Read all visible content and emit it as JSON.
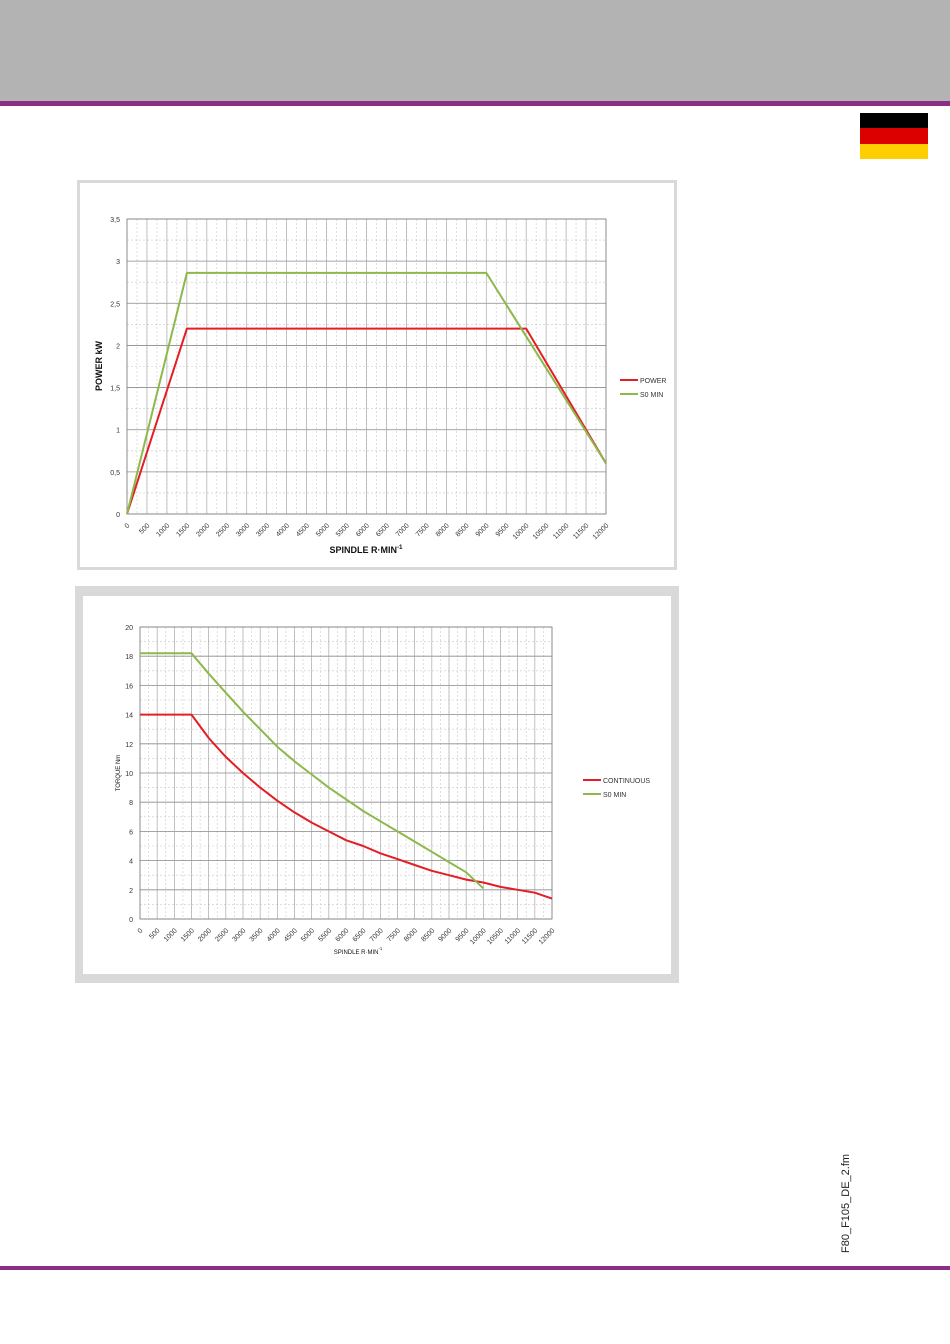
{
  "page": {
    "file_id": "F80_F105_DE_2.fm",
    "colors": {
      "header": "#b3b3b3",
      "rule": "#8b2f86",
      "series_red": "#e31e24",
      "series_green": "#8db84a"
    },
    "flag_colors": [
      "#000000",
      "#dd0000",
      "#ffce00"
    ]
  },
  "chart_data": [
    {
      "type": "line",
      "xlabel": "SPINDLE R·MIN",
      "xlabel_sup": "-1",
      "ylabel": "POWER kW",
      "ylim": [
        0,
        3.5
      ],
      "xlim": [
        0,
        12000
      ],
      "y_ticks": [
        "0",
        "0,5",
        "1",
        "1,5",
        "2",
        "2,5",
        "3",
        "3,5"
      ],
      "x_ticks": [
        "0",
        "500",
        "1000",
        "1500",
        "2000",
        "2500",
        "3000",
        "3500",
        "4000",
        "4500",
        "5000",
        "5500",
        "6000",
        "6500",
        "7000",
        "7500",
        "8000",
        "8500",
        "9000",
        "9500",
        "10000",
        "10500",
        "11000",
        "11500",
        "12000"
      ],
      "grid": true,
      "legend_position": "right",
      "series": [
        {
          "name": "POWER",
          "color": "#e31e24",
          "x": [
            0,
            1500,
            10000,
            12000
          ],
          "y": [
            0,
            2.2,
            2.2,
            0.6
          ]
        },
        {
          "name": "S0 MIN",
          "color": "#8db84a",
          "x": [
            0,
            1500,
            9000,
            12000
          ],
          "y": [
            0,
            2.86,
            2.86,
            0.6
          ]
        }
      ]
    },
    {
      "type": "line",
      "xlabel": "SPINDLE R·MIN",
      "xlabel_sup": "-1",
      "ylabel": "TORQUE Nm",
      "ylim": [
        0,
        20
      ],
      "xlim": [
        0,
        12000
      ],
      "y_ticks": [
        "0",
        "2",
        "4",
        "6",
        "8",
        "10",
        "12",
        "14",
        "16",
        "18",
        "20"
      ],
      "x_ticks": [
        "0",
        "500",
        "1000",
        "1500",
        "2000",
        "2500",
        "3000",
        "3500",
        "4000",
        "4500",
        "5000",
        "5500",
        "6000",
        "6500",
        "7000",
        "7500",
        "8000",
        "8500",
        "9000",
        "9500",
        "10000",
        "10500",
        "11000",
        "11500",
        "12000"
      ],
      "grid": true,
      "legend_position": "right",
      "series": [
        {
          "name": "CONTINUOUS",
          "color": "#e31e24",
          "x": [
            0,
            1500,
            2000,
            2500,
            3000,
            3500,
            4000,
            4500,
            5000,
            5500,
            6000,
            6500,
            7000,
            7500,
            8000,
            8500,
            9000,
            9500,
            10000,
            10500,
            11000,
            11500,
            12000
          ],
          "y": [
            14,
            14,
            12.4,
            11.1,
            10.0,
            9.0,
            8.1,
            7.3,
            6.6,
            6.0,
            5.4,
            5.0,
            4.5,
            4.1,
            3.7,
            3.3,
            3.0,
            2.7,
            2.5,
            2.2,
            2.0,
            1.8,
            1.4
          ]
        },
        {
          "name": "S0 MIN",
          "color": "#8db84a",
          "x": [
            0,
            1500,
            2000,
            2500,
            3000,
            3500,
            4000,
            4500,
            5000,
            5500,
            6000,
            6500,
            7000,
            7500,
            8000,
            8500,
            9000,
            9500,
            10000
          ],
          "y": [
            18.2,
            18.2,
            16.8,
            15.5,
            14.2,
            13.0,
            11.8,
            10.8,
            9.9,
            9.0,
            8.2,
            7.4,
            6.7,
            6.0,
            5.3,
            4.6,
            3.9,
            3.2,
            2.1
          ]
        }
      ]
    }
  ]
}
